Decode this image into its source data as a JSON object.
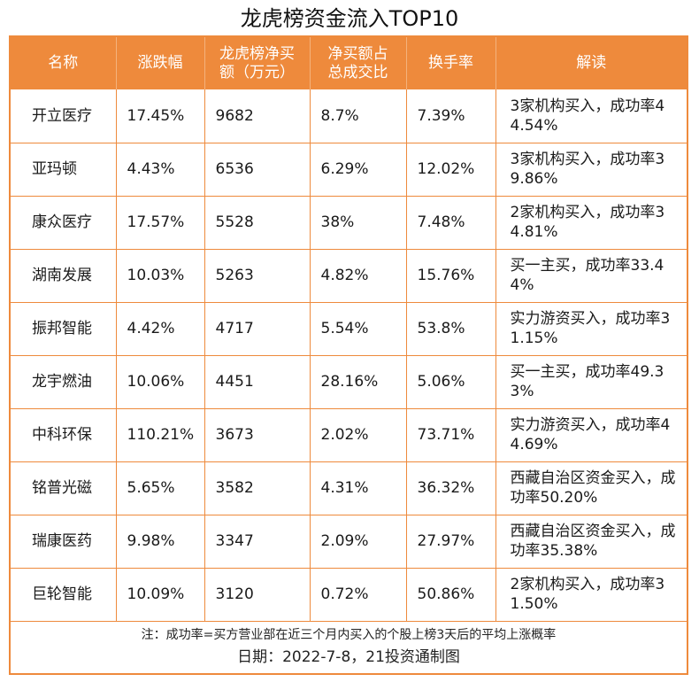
{
  "title": "龙虎榜资金流入TOP10",
  "headers": {
    "name": "名称",
    "change": "涨跌幅",
    "net_buy_line1": "龙虎榜净买",
    "net_buy_line2": "额（万元）",
    "ratio_line1": "净买额占",
    "ratio_line2": "总成交比",
    "turnover": "换手率",
    "interpretation": "解读"
  },
  "rows": [
    {
      "name": "开立医疗",
      "change": "17.45%",
      "net_buy": "9682",
      "ratio": "8.7%",
      "turnover": "7.39%",
      "note": "3家机构买入，成功率44.54%"
    },
    {
      "name": "亚玛顿",
      "change": "4.43%",
      "net_buy": "6536",
      "ratio": "6.29%",
      "turnover": "12.02%",
      "note": "3家机构买入，成功率39.86%"
    },
    {
      "name": "康众医疗",
      "change": "17.57%",
      "net_buy": "5528",
      "ratio": "38%",
      "turnover": "7.48%",
      "note": "2家机构买入，成功率34.81%"
    },
    {
      "name": "湖南发展",
      "change": "10.03%",
      "net_buy": "5263",
      "ratio": "4.82%",
      "turnover": "15.76%",
      "note": "买一主买，成功率33.44%"
    },
    {
      "name": "振邦智能",
      "change": "4.42%",
      "net_buy": "4717",
      "ratio": "5.54%",
      "turnover": "53.8%",
      "note": "实力游资买入，成功率31.15%"
    },
    {
      "name": "龙宇燃油",
      "change": "10.06%",
      "net_buy": "4451",
      "ratio": "28.16%",
      "turnover": "5.06%",
      "note": "买一主买，成功率49.33%"
    },
    {
      "name": "中科环保",
      "change": "110.21%",
      "net_buy": "3673",
      "ratio": "2.02%",
      "turnover": "73.71%",
      "note": "实力游资买入，成功率44.69%"
    },
    {
      "name": "铭普光磁",
      "change": "5.65%",
      "net_buy": "3582",
      "ratio": "4.31%",
      "turnover": "36.32%",
      "note": "西藏自治区资金买入，成功率50.20%"
    },
    {
      "name": "瑞康医药",
      "change": "9.98%",
      "net_buy": "3347",
      "ratio": "2.09%",
      "turnover": "27.97%",
      "note": "西藏自治区资金买入，成功率35.38%"
    },
    {
      "name": "巨轮智能",
      "change": "10.09%",
      "net_buy": "3120",
      "ratio": "0.72%",
      "turnover": "50.86%",
      "note": "2家机构买入，成功率31.50%"
    }
  ],
  "footnote": "注：成功率=买方营业部在近三个月内买入的个股上榜3天后的平均上涨概率",
  "date_line": "日期：2022-7-8，21投资通制图",
  "colors": {
    "accent": "#ee8a3c",
    "header_text": "#ffffff"
  }
}
